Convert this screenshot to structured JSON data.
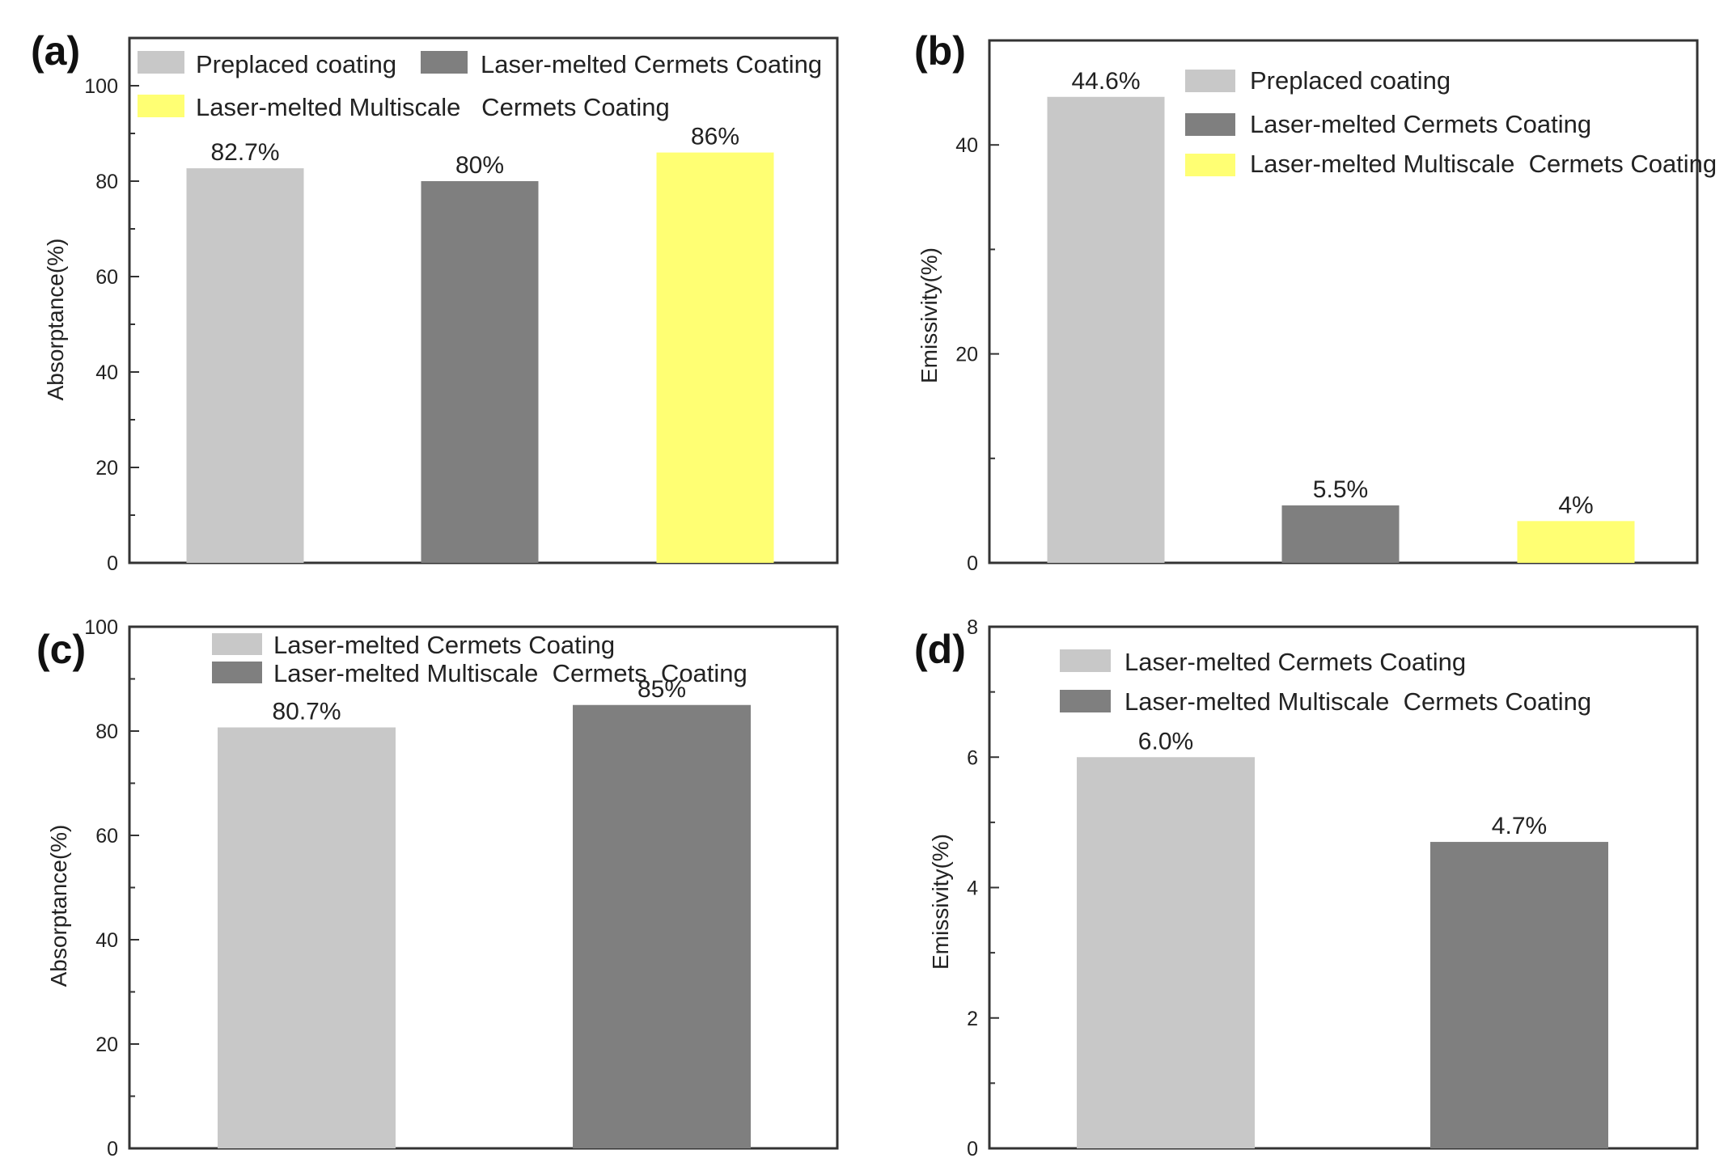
{
  "chart_data": [
    {
      "panel": "(a)",
      "type": "bar",
      "categories": [
        "Preplaced coating",
        "Laser-melted Cermets Coating",
        "Laser-melted Multiscale   Cermets Coating"
      ],
      "values": [
        82.7,
        80,
        86
      ],
      "data_labels": [
        "82.7%",
        "80%",
        "86%"
      ],
      "colors": [
        "#c8c8c8",
        "#7f7f7f",
        "#ffff73"
      ],
      "legend": [
        "Preplaced coating",
        "Laser-melted Cermets Coating",
        "Laser-melted Multiscale   Cermets Coating"
      ],
      "ylabel": "Absorptance(%)",
      "xlabel": "",
      "ylim": [
        0,
        110
      ],
      "yticks": [
        "0",
        "20",
        "40",
        "60",
        "80",
        "100"
      ]
    },
    {
      "panel": "(b)",
      "type": "bar",
      "categories": [
        "Preplaced coating",
        "Laser-melted Cermets Coating",
        "Laser-melted Multiscale  Cermets Coating"
      ],
      "values": [
        44.6,
        5.5,
        4
      ],
      "data_labels": [
        "44.6%",
        "5.5%",
        "4%"
      ],
      "colors": [
        "#c8c8c8",
        "#7f7f7f",
        "#ffff73"
      ],
      "legend": [
        "Preplaced coating",
        "Laser-melted Cermets Coating",
        "Laser-melted Multiscale  Cermets Coating"
      ],
      "ylabel": "Emissivity(%)",
      "xlabel": "",
      "ylim": [
        0,
        50
      ],
      "yticks": [
        "0",
        "20",
        "40"
      ]
    },
    {
      "panel": "(c)",
      "type": "bar",
      "categories": [
        "Laser-melted Cermets Coating",
        "Laser-melted Multiscale  Cermets  Coating"
      ],
      "values": [
        80.7,
        85
      ],
      "data_labels": [
        "80.7%",
        "85%"
      ],
      "colors": [
        "#c8c8c8",
        "#7f7f7f"
      ],
      "legend": [
        "Laser-melted Cermets Coating",
        "Laser-melted Multiscale  Cermets  Coating"
      ],
      "ylabel": "Absorptance(%)",
      "xlabel": "",
      "ylim": [
        0,
        100
      ],
      "yticks": [
        "0",
        "20",
        "40",
        "60",
        "80",
        "100"
      ]
    },
    {
      "panel": "(d)",
      "type": "bar",
      "categories": [
        "Laser-melted Cermets Coating",
        "Laser-melted Multiscale  Cermets Coating"
      ],
      "values": [
        6.0,
        4.7
      ],
      "data_labels": [
        "6.0%",
        "4.7%"
      ],
      "colors": [
        "#c8c8c8",
        "#7f7f7f"
      ],
      "legend": [
        "Laser-melted Cermets Coating",
        "Laser-melted Multiscale  Cermets Coating"
      ],
      "ylabel": "Emissivity(%)",
      "xlabel": "",
      "ylim": [
        0,
        8
      ],
      "yticks": [
        "0",
        "2",
        "4",
        "6",
        "8"
      ]
    }
  ]
}
